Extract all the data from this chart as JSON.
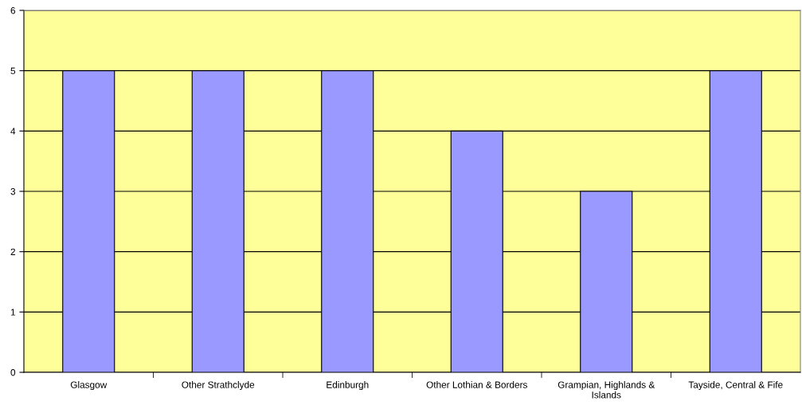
{
  "chart_data": {
    "type": "bar",
    "categories": [
      "Glasgow",
      "Other Strathclyde",
      "Edinburgh",
      "Other Lothian & Borders",
      "Grampian, Highlands &\nIslands",
      "Tayside, Central & Fife"
    ],
    "values": [
      5,
      5,
      5,
      4,
      3,
      5
    ],
    "color": "#9999ff",
    "ylim": [
      0,
      6
    ],
    "yticks": [
      0,
      1,
      2,
      3,
      4,
      5,
      6
    ],
    "grid": "y"
  }
}
